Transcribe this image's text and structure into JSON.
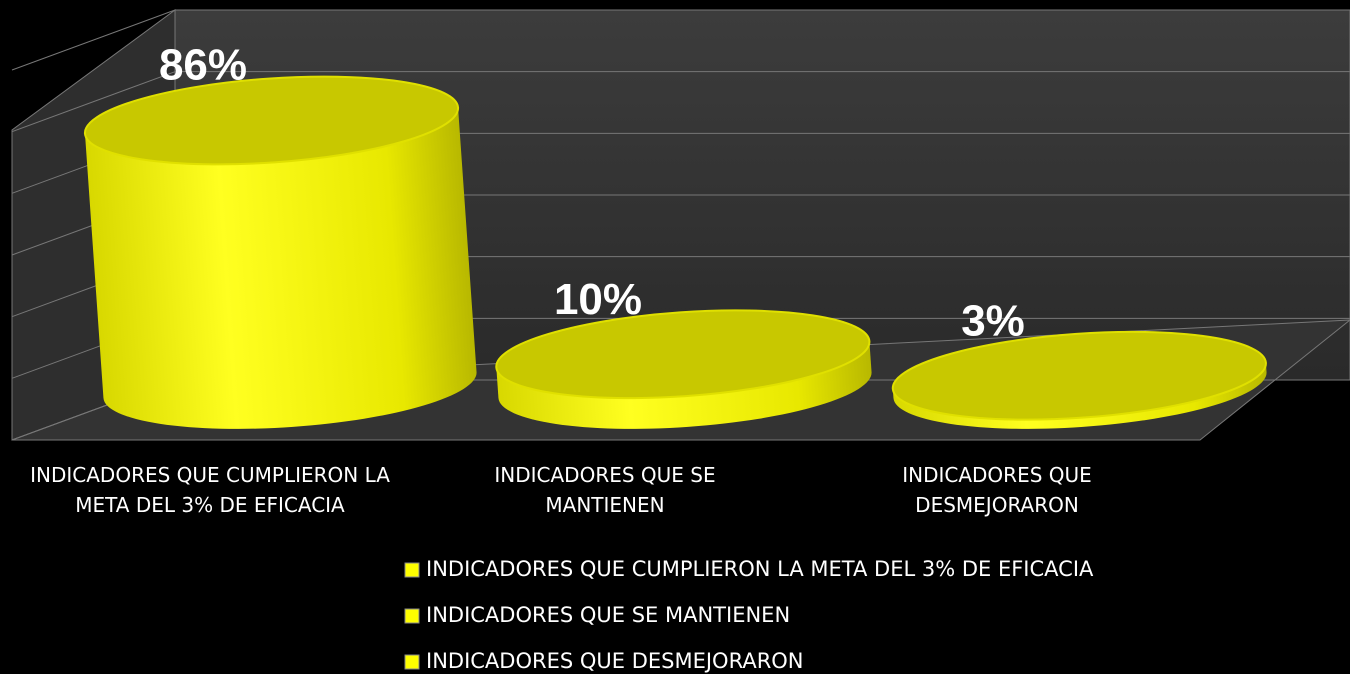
{
  "chart_data": {
    "type": "bar",
    "categories": [
      "INDICADORES QUE CUMPLIERON LA META DEL 3% DE EFICACIA",
      "INDICADORES QUE SE MANTIENEN",
      "INDICADORES QUE DESMEJORARON"
    ],
    "values": [
      86,
      10,
      3
    ],
    "value_labels": [
      "86%",
      "10%",
      "3%"
    ],
    "color": "#ffff00",
    "ylim": [
      0,
      120
    ],
    "yticks": [
      0,
      20,
      40,
      60,
      80,
      100,
      120
    ],
    "grid": true
  }
}
